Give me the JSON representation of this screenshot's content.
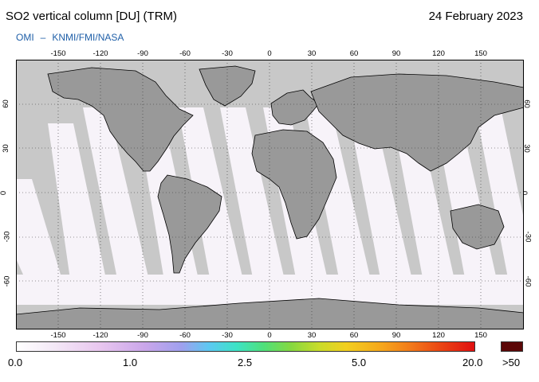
{
  "header": {
    "title": "SO2 vertical column [DU] (TRM)",
    "date": "24 February 2023",
    "credit_left": "OMI",
    "credit_sep": "–",
    "credit_right": "KNMI/FMI/NASA"
  },
  "map": {
    "projection": "equirectangular",
    "lon_ticks": [
      "-150",
      "-120",
      "-90",
      "-60",
      "-30",
      "0",
      "30",
      "60",
      "90",
      "120",
      "150"
    ],
    "lat_ticks": [
      "60",
      "30",
      "0",
      "-30",
      "-60"
    ],
    "colors": {
      "background": "#c8c8c8",
      "land": "#999999",
      "swath": "#f7f3f9",
      "gridline": "#333333",
      "coastline": "#000000"
    }
  },
  "colorbar": {
    "labels": [
      "0.0",
      "1.0",
      "2.5",
      "5.0",
      "20.0"
    ],
    "overflow_label": ">50",
    "overflow_color": "#5b0707"
  }
}
